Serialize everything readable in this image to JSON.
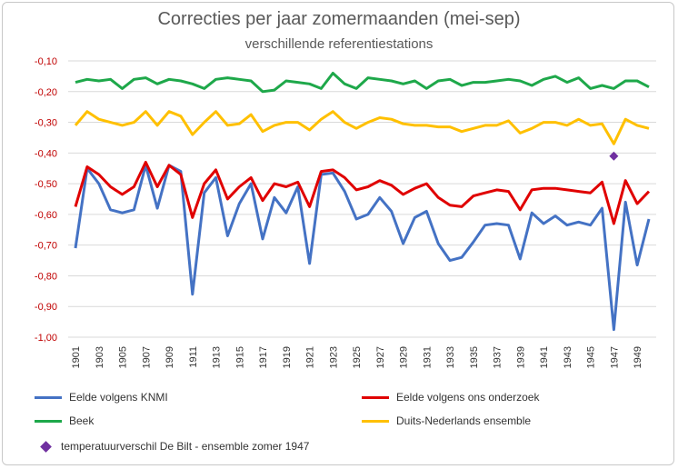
{
  "chart_data": {
    "type": "line",
    "title": "Correcties per jaar zomermaanden (mei-sep)",
    "subtitle": "verschillende referentiestations",
    "ylim": [
      -1.0,
      -0.1
    ],
    "y_ticks": [
      "-0,10",
      "-0,20",
      "-0,30",
      "-0,40",
      "-0,50",
      "-0,60",
      "-0,70",
      "-0,80",
      "-0,90",
      "-1,00"
    ],
    "y_tick_color": "#c00000",
    "x_ticks": [
      "1901",
      "1903",
      "1905",
      "1907",
      "1909",
      "1911",
      "1913",
      "1915",
      "1917",
      "1919",
      "1921",
      "1923",
      "1925",
      "1927",
      "1929",
      "1931",
      "1933",
      "1935",
      "1937",
      "1939",
      "1941",
      "1943",
      "1945",
      "1947",
      "1949"
    ],
    "grid": true,
    "legend_position": "bottom",
    "x": [
      1901,
      1902,
      1903,
      1904,
      1905,
      1906,
      1907,
      1908,
      1909,
      1910,
      1911,
      1912,
      1913,
      1914,
      1915,
      1916,
      1917,
      1918,
      1919,
      1920,
      1921,
      1922,
      1923,
      1924,
      1925,
      1926,
      1927,
      1928,
      1929,
      1930,
      1931,
      1932,
      1933,
      1934,
      1935,
      1936,
      1937,
      1938,
      1939,
      1940,
      1941,
      1942,
      1943,
      1944,
      1945,
      1946,
      1947,
      1948,
      1949,
      1950
    ],
    "series": [
      {
        "name": "Eelde volgens KNMI",
        "color": "#4472c4",
        "values": [
          -0.71,
          -0.45,
          -0.5,
          -0.585,
          -0.595,
          -0.585,
          -0.44,
          -0.58,
          -0.44,
          -0.46,
          -0.86,
          -0.53,
          -0.48,
          -0.67,
          -0.565,
          -0.5,
          -0.68,
          -0.545,
          -0.595,
          -0.51,
          -0.76,
          -0.47,
          -0.465,
          -0.525,
          -0.615,
          -0.6,
          -0.545,
          -0.59,
          -0.695,
          -0.61,
          -0.59,
          -0.695,
          -0.75,
          -0.74,
          -0.69,
          -0.635,
          -0.63,
          -0.635,
          -0.745,
          -0.595,
          -0.63,
          -0.605,
          -0.635,
          -0.625,
          -0.635,
          -0.58,
          -0.975,
          -0.56,
          -0.765,
          -0.615
        ]
      },
      {
        "name": "Eelde volgens ons onderzoek",
        "color": "#e00000",
        "values": [
          -0.575,
          -0.445,
          -0.47,
          -0.51,
          -0.535,
          -0.51,
          -0.43,
          -0.51,
          -0.44,
          -0.47,
          -0.61,
          -0.5,
          -0.455,
          -0.55,
          -0.51,
          -0.48,
          -0.555,
          -0.5,
          -0.51,
          -0.495,
          -0.575,
          -0.46,
          -0.455,
          -0.48,
          -0.52,
          -0.51,
          -0.49,
          -0.505,
          -0.535,
          -0.515,
          -0.5,
          -0.545,
          -0.57,
          -0.575,
          -0.54,
          -0.53,
          -0.52,
          -0.525,
          -0.585,
          -0.52,
          -0.515,
          -0.515,
          -0.52,
          -0.525,
          -0.53,
          -0.495,
          -0.63,
          -0.49,
          -0.565,
          -0.525
        ]
      },
      {
        "name": "Beek",
        "color": "#1ea84a",
        "values": [
          -0.17,
          -0.16,
          -0.165,
          -0.16,
          -0.19,
          -0.16,
          -0.155,
          -0.175,
          -0.16,
          -0.165,
          -0.175,
          -0.19,
          -0.16,
          -0.155,
          -0.16,
          -0.165,
          -0.2,
          -0.195,
          -0.165,
          -0.17,
          -0.175,
          -0.19,
          -0.14,
          -0.175,
          -0.19,
          -0.155,
          -0.16,
          -0.165,
          -0.175,
          -0.165,
          -0.19,
          -0.165,
          -0.16,
          -0.18,
          -0.17,
          -0.17,
          -0.165,
          -0.16,
          -0.165,
          -0.18,
          -0.16,
          -0.15,
          -0.17,
          -0.155,
          -0.19,
          -0.18,
          -0.19,
          -0.165,
          -0.165,
          -0.185
        ]
      },
      {
        "name": "Duits-Nederlands ensemble",
        "color": "#ffc000",
        "values": [
          -0.31,
          -0.265,
          -0.29,
          -0.3,
          -0.31,
          -0.3,
          -0.265,
          -0.31,
          -0.265,
          -0.28,
          -0.34,
          -0.3,
          -0.265,
          -0.31,
          -0.305,
          -0.275,
          -0.33,
          -0.31,
          -0.3,
          -0.3,
          -0.325,
          -0.29,
          -0.265,
          -0.3,
          -0.32,
          -0.3,
          -0.285,
          -0.29,
          -0.305,
          -0.31,
          -0.31,
          -0.315,
          -0.315,
          -0.33,
          -0.32,
          -0.31,
          -0.31,
          -0.295,
          -0.335,
          -0.32,
          -0.3,
          -0.3,
          -0.31,
          -0.29,
          -0.31,
          -0.305,
          -0.37,
          -0.29,
          -0.31,
          -0.32
        ]
      }
    ],
    "points": [
      {
        "name": "temperatuurverschil De Bilt - ensemble zomer 1947",
        "color": "#7030a0",
        "x": 1947,
        "y": -0.41
      }
    ]
  },
  "legend": [
    {
      "label": "Eelde volgens KNMI",
      "color": "#4472c4",
      "kind": "line"
    },
    {
      "label": "Eelde volgens ons onderzoek",
      "color": "#e00000",
      "kind": "line"
    },
    {
      "label": "Beek",
      "color": "#1ea84a",
      "kind": "line"
    },
    {
      "label": "Duits-Nederlands ensemble",
      "color": "#ffc000",
      "kind": "line"
    },
    {
      "label": "temperatuurverschil De Bilt - ensemble zomer 1947",
      "color": "#7030a0",
      "kind": "marker"
    }
  ]
}
